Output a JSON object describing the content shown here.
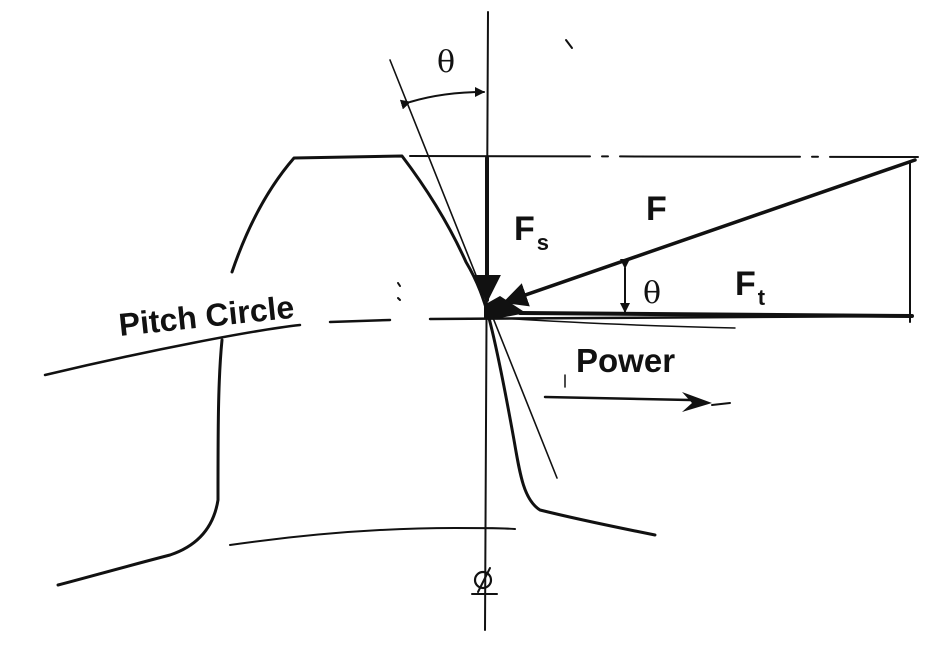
{
  "labels": {
    "theta_top": "θ",
    "force_separating": "F",
    "force_separating_sub": "s",
    "force_resultant": "F",
    "theta_pressure": "θ",
    "force_tangential": "F",
    "force_tangential_sub": "t",
    "pitch_circle": "Pitch Circle",
    "power": "Power"
  },
  "icons": {
    "centerline_symbol": "centerline-icon"
  }
}
